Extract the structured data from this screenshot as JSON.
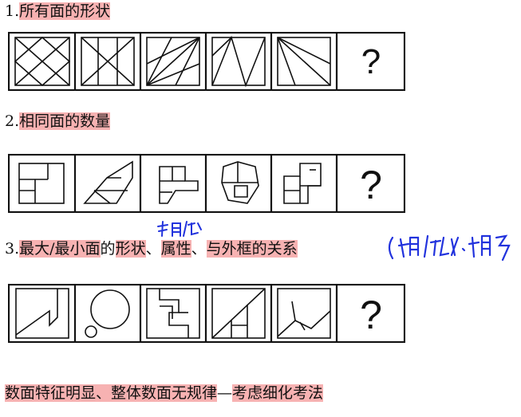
{
  "headings": [
    {
      "num": "1.",
      "parts": [
        {
          "text": "所有面的形状",
          "hl": true
        }
      ]
    },
    {
      "num": "2.",
      "parts": [
        {
          "text": "相同面的数量",
          "hl": true
        }
      ]
    },
    {
      "num": "3.",
      "parts": [
        {
          "text": "最大/最小面",
          "hl": true
        },
        {
          "text": "的",
          "hl": false
        },
        {
          "text": "形状",
          "hl": true
        },
        {
          "text": "、",
          "hl": false
        },
        {
          "text": "属性",
          "hl": true
        },
        {
          "text": "、",
          "hl": false
        },
        {
          "text": "与外框的关系",
          "hl": true
        }
      ]
    }
  ],
  "summary": [
    {
      "text": "数面特征明显、整体数面无规律",
      "hl": true
    },
    {
      "text": "—",
      "hl": false
    },
    {
      "text": "考虑",
      "hl": true
    },
    {
      "text": "细化考法",
      "hl": true
    }
  ],
  "question_mark": "?",
  "colors": {
    "highlight": "#f7b2b2",
    "ink": "#111111",
    "pen": "#2233dd"
  }
}
